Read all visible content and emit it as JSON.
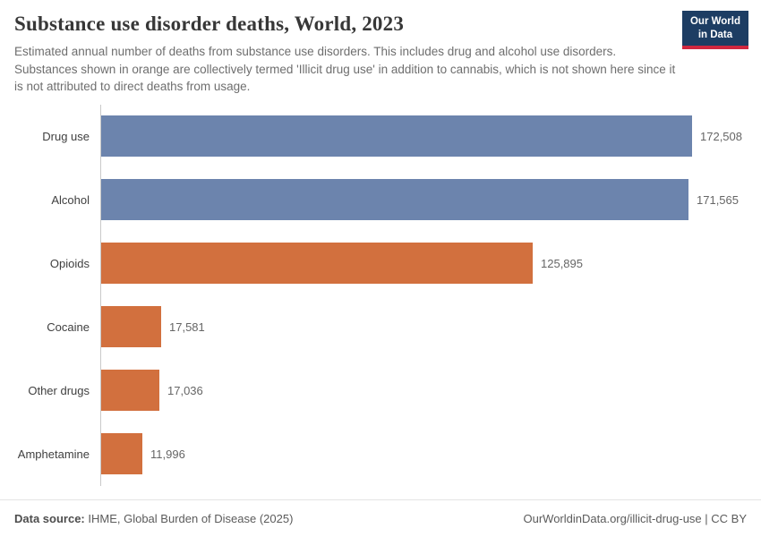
{
  "header": {
    "title": "Substance use disorder deaths, World, 2023",
    "subtitle": "Estimated annual number of deaths from substance use disorders. This includes drug and alcohol use disorders. Substances shown in orange are collectively termed 'Illicit drug use' in addition to cannabis, which is not shown here since it is not attributed to direct deaths from usage."
  },
  "logo": {
    "line1": "Our World",
    "line2": "in Data",
    "bg_color": "#1d3d63",
    "accent_color": "#d0273f"
  },
  "chart_data": {
    "type": "bar",
    "orientation": "horizontal",
    "title": "Substance use disorder deaths, World, 2023",
    "categories": [
      "Drug use",
      "Alcohol",
      "Opioids",
      "Cocaine",
      "Other drugs",
      "Amphetamine"
    ],
    "values": [
      172508,
      171565,
      125895,
      17581,
      17036,
      11996
    ],
    "value_labels": [
      "172,508",
      "171,565",
      "125,895",
      "17,581",
      "17,036",
      "11,996"
    ],
    "bar_colors": [
      "#6c84ad",
      "#6c84ad",
      "#d2703e",
      "#d2703e",
      "#d2703e",
      "#d2703e"
    ],
    "blue_color": "#6c84ad",
    "orange_color": "#d2703e",
    "xlim": [
      0,
      172508
    ],
    "grid": false,
    "legend": "none"
  },
  "footer": {
    "source_label": "Data source:",
    "source_text": "IHME, Global Burden of Disease (2025)",
    "link_text": "OurWorldinData.org/illicit-drug-use | CC BY"
  }
}
